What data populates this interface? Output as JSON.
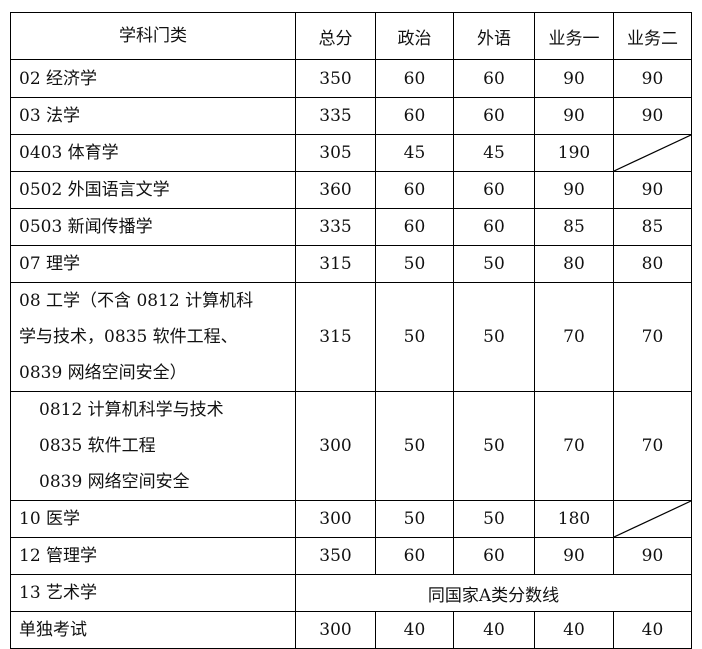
{
  "headers": [
    "学科门类",
    "总分",
    "政治",
    "外语",
    "业务一",
    "业务二"
  ],
  "rows": [
    {
      "name": [
        "02 经济学"
      ],
      "values": [
        "350",
        "60",
        "60",
        "90",
        "90"
      ]
    },
    {
      "name": [
        "03 法学"
      ],
      "values": [
        "335",
        "60",
        "60",
        "90",
        "90"
      ]
    },
    {
      "name": [
        "0403 体育学"
      ],
      "values": [
        "305",
        "45",
        "45",
        "190",
        null
      ]
    },
    {
      "name": [
        "0502 外国语言文学"
      ],
      "values": [
        "360",
        "60",
        "60",
        "90",
        "90"
      ]
    },
    {
      "name": [
        "0503 新闻传播学"
      ],
      "values": [
        "335",
        "60",
        "60",
        "85",
        "85"
      ]
    },
    {
      "name": [
        "07 理学"
      ],
      "values": [
        "315",
        "50",
        "50",
        "80",
        "80"
      ]
    },
    {
      "name": [
        "08 工学（不含 0812 计算机科",
        "学与技术，0835 软件工程、",
        "0839 网络空间安全）"
      ],
      "values": [
        "315",
        "50",
        "50",
        "70",
        "70"
      ]
    },
    {
      "name": [
        "0812 计算机科学与技术",
        "0835 软件工程",
        "0839 网络空间安全"
      ],
      "values": [
        "300",
        "50",
        "50",
        "70",
        "70"
      ]
    },
    {
      "name": [
        "10 医学"
      ],
      "values": [
        "300",
        "50",
        "50",
        "180",
        null
      ]
    },
    {
      "name": [
        "12 管理学"
      ],
      "values": [
        "350",
        "60",
        "60",
        "90",
        "90"
      ]
    },
    {
      "name": [
        "13 艺术学"
      ],
      "merged": "同国家A类分数线"
    },
    {
      "name": [
        "单独考试"
      ],
      "values": [
        "300",
        "40",
        "40",
        "40",
        "40"
      ]
    }
  ]
}
